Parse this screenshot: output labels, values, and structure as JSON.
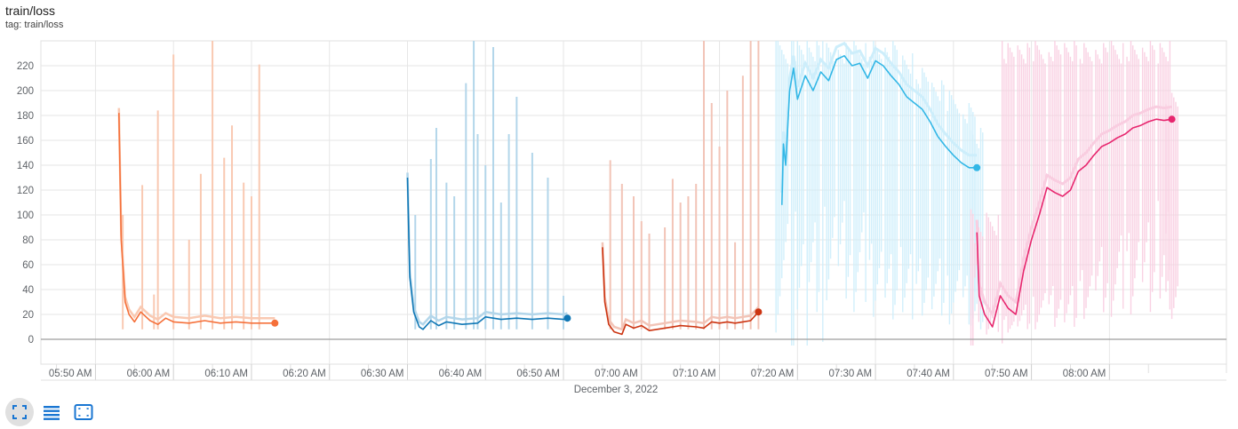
{
  "header": {
    "title": "train/loss",
    "tag": "tag: train/loss"
  },
  "toolbar": {
    "items": [
      {
        "name": "fit-domain-button",
        "icon": "fit-screen-icon"
      },
      {
        "name": "toggle-log-button",
        "icon": "list-icon"
      },
      {
        "name": "zoom-box-button",
        "icon": "crop-free-icon"
      }
    ]
  },
  "chart_data": {
    "type": "line",
    "title": "train/loss",
    "xlabel": "December 3, 2022",
    "ylabel": "",
    "x_axis": "time",
    "xlim": [
      "05:43",
      "08:15"
    ],
    "ylim": [
      -20,
      240
    ],
    "y_ticks": [
      0,
      20,
      40,
      60,
      80,
      100,
      120,
      140,
      160,
      180,
      200,
      220
    ],
    "x_ticks": [
      "05:50 AM",
      "06:00 AM",
      "06:10 AM",
      "06:20 AM",
      "06:30 AM",
      "06:40 AM",
      "06:50 AM",
      "07:00 AM",
      "07:10 AM",
      "07:20 AM",
      "07:30 AM",
      "07:40 AM",
      "07:50 AM",
      "08:00 AM"
    ],
    "grid": true,
    "series": [
      {
        "color": "#f5703a",
        "raw_color": "#f9c9b2",
        "smoothed": [
          [
            "05:53",
            182
          ],
          [
            "05:53.3",
            80
          ],
          [
            "05:53.8",
            30
          ],
          [
            "05:54.3",
            20
          ],
          [
            "05:55",
            14
          ],
          [
            "05:55.8",
            22
          ],
          [
            "05:57",
            15
          ],
          [
            "05:58",
            12
          ],
          [
            "05:59",
            17
          ],
          [
            "06:00",
            14
          ],
          [
            "06:02",
            13
          ],
          [
            "06:04",
            15
          ],
          [
            "06:06",
            13
          ],
          [
            "06:08",
            14
          ],
          [
            "06:10",
            13
          ],
          [
            "06:12",
            13
          ],
          [
            "06:13",
            13
          ]
        ],
        "raw_spikes": [
          [
            "05:53.5",
            100
          ],
          [
            "05:56",
            124
          ],
          [
            "05:57.5",
            36
          ],
          [
            "05:58",
            184
          ],
          [
            "06:00",
            229
          ],
          [
            "06:02",
            80
          ],
          [
            "06:03.5",
            133
          ],
          [
            "06:05",
            240
          ],
          [
            "06:06.5",
            146
          ],
          [
            "06:07.5",
            172
          ],
          [
            "06:09",
            126
          ],
          [
            "06:10",
            115
          ],
          [
            "06:11",
            221
          ]
        ]
      },
      {
        "color": "#0f77b5",
        "raw_color": "#b3d6ea",
        "smoothed": [
          [
            "06:30",
            130
          ],
          [
            "06:30.3",
            50
          ],
          [
            "06:30.8",
            22
          ],
          [
            "06:31.5",
            10
          ],
          [
            "06:32",
            8
          ],
          [
            "06:33",
            15
          ],
          [
            "06:34",
            11
          ],
          [
            "06:35",
            14
          ],
          [
            "06:37",
            12
          ],
          [
            "06:39",
            13
          ],
          [
            "06:40",
            18
          ],
          [
            "06:42",
            16
          ],
          [
            "06:44",
            17
          ],
          [
            "06:46",
            16
          ],
          [
            "06:48",
            17
          ],
          [
            "06:50",
            16
          ],
          [
            "06:50.5",
            17
          ]
        ],
        "raw_spikes": [
          [
            "06:31",
            100
          ],
          [
            "06:33",
            145
          ],
          [
            "06:33.7",
            170
          ],
          [
            "06:35",
            126
          ],
          [
            "06:36",
            115
          ],
          [
            "06:37.5",
            206
          ],
          [
            "06:38.5",
            240
          ],
          [
            "06:39",
            165
          ],
          [
            "06:40",
            140
          ],
          [
            "06:41",
            235
          ],
          [
            "06:42",
            110
          ],
          [
            "06:43",
            165
          ],
          [
            "06:44",
            195
          ],
          [
            "06:46",
            150
          ],
          [
            "06:48",
            130
          ],
          [
            "06:50",
            35
          ]
        ]
      },
      {
        "color": "#cc3411",
        "raw_color": "#f2c4b7",
        "smoothed": [
          [
            "06:55",
            74
          ],
          [
            "06:55.3",
            30
          ],
          [
            "06:55.8",
            12
          ],
          [
            "06:56.5",
            6
          ],
          [
            "06:57.5",
            4
          ],
          [
            "06:58",
            12
          ],
          [
            "06:59",
            9
          ],
          [
            "07:00",
            11
          ],
          [
            "07:01",
            7
          ],
          [
            "07:03",
            9
          ],
          [
            "07:05",
            11
          ],
          [
            "07:07",
            10
          ],
          [
            "07:08",
            9
          ],
          [
            "07:09",
            14
          ],
          [
            "07:10",
            13
          ],
          [
            "07:11",
            14
          ],
          [
            "07:12",
            13
          ],
          [
            "07:13",
            14
          ],
          [
            "07:14",
            15
          ],
          [
            "07:15",
            22
          ]
        ],
        "raw_spikes": [
          [
            "06:56",
            144
          ],
          [
            "06:57.5",
            125
          ],
          [
            "06:59",
            115
          ],
          [
            "07:00",
            95
          ],
          [
            "07:01",
            85
          ],
          [
            "07:03",
            90
          ],
          [
            "07:04",
            129
          ],
          [
            "07:05",
            110
          ],
          [
            "07:06",
            115
          ],
          [
            "07:07",
            125
          ],
          [
            "07:08",
            240
          ],
          [
            "07:09",
            190
          ],
          [
            "07:10",
            155
          ],
          [
            "07:11",
            200
          ],
          [
            "07:12",
            78
          ],
          [
            "07:13",
            212
          ],
          [
            "07:14",
            240
          ],
          [
            "07:15",
            240
          ]
        ]
      },
      {
        "color": "#33b7e6",
        "raw_color": "#cdeefb",
        "smoothed": [
          [
            "07:18",
            108
          ],
          [
            "07:18.2",
            157
          ],
          [
            "07:18.5",
            140
          ],
          [
            "07:19",
            200
          ],
          [
            "07:19.5",
            218
          ],
          [
            "07:20",
            193
          ],
          [
            "07:21",
            212
          ],
          [
            "07:22",
            200
          ],
          [
            "07:23",
            215
          ],
          [
            "07:24",
            208
          ],
          [
            "07:25",
            225
          ],
          [
            "07:26",
            228
          ],
          [
            "07:27",
            220
          ],
          [
            "07:28",
            222
          ],
          [
            "07:29",
            210
          ],
          [
            "07:30",
            224
          ],
          [
            "07:31",
            220
          ],
          [
            "07:32",
            212
          ],
          [
            "07:33",
            205
          ],
          [
            "07:34",
            195
          ],
          [
            "07:35",
            190
          ],
          [
            "07:36",
            185
          ],
          [
            "07:37",
            175
          ],
          [
            "07:38",
            163
          ],
          [
            "07:39",
            155
          ],
          [
            "07:40",
            148
          ],
          [
            "07:41",
            142
          ],
          [
            "07:42",
            138
          ],
          [
            "07:43",
            138
          ]
        ],
        "raw_lo": [
          [
            "07:18",
            100
          ],
          [
            "07:20",
            120
          ],
          [
            "07:22",
            110
          ],
          [
            "07:24",
            115
          ],
          [
            "07:26",
            120
          ],
          [
            "07:28",
            110
          ],
          [
            "07:30",
            90
          ],
          [
            "07:32",
            80
          ],
          [
            "07:34",
            80
          ],
          [
            "07:36",
            70
          ],
          [
            "07:38",
            70
          ],
          [
            "07:40",
            60
          ],
          [
            "07:42",
            60
          ],
          [
            "07:43",
            40
          ]
        ],
        "raw_hi": [
          [
            "07:18",
            240
          ],
          [
            "07:20",
            240
          ],
          [
            "07:22",
            240
          ],
          [
            "07:24",
            240
          ],
          [
            "07:26",
            240
          ],
          [
            "07:28",
            240
          ],
          [
            "07:30",
            240
          ],
          [
            "07:32",
            240
          ],
          [
            "07:34",
            230
          ],
          [
            "07:36",
            220
          ],
          [
            "07:38",
            210
          ],
          [
            "07:40",
            200
          ],
          [
            "07:42",
            190
          ],
          [
            "07:43",
            170
          ]
        ]
      },
      {
        "color": "#e7266e",
        "raw_color": "#f9cde0",
        "smoothed": [
          [
            "07:43",
            86
          ],
          [
            "07:43.3",
            35
          ],
          [
            "07:44",
            20
          ],
          [
            "07:45",
            10
          ],
          [
            "07:46",
            35
          ],
          [
            "07:47",
            25
          ],
          [
            "07:48",
            20
          ],
          [
            "07:49",
            55
          ],
          [
            "07:50",
            80
          ],
          [
            "07:51",
            100
          ],
          [
            "07:52",
            122
          ],
          [
            "07:53",
            118
          ],
          [
            "07:54",
            115
          ],
          [
            "07:55",
            120
          ],
          [
            "07:56",
            135
          ],
          [
            "07:57",
            140
          ],
          [
            "07:58",
            148
          ],
          [
            "07:59",
            155
          ],
          [
            "08:00",
            158
          ],
          [
            "08:01",
            162
          ],
          [
            "08:02",
            165
          ],
          [
            "08:03",
            170
          ],
          [
            "08:04",
            172
          ],
          [
            "08:05",
            175
          ],
          [
            "08:06",
            177
          ],
          [
            "08:07",
            176
          ],
          [
            "08:08",
            177
          ]
        ],
        "raw_lo": [
          [
            "07:43",
            70
          ],
          [
            "07:45",
            30
          ],
          [
            "07:47",
            20
          ],
          [
            "07:49",
            30
          ],
          [
            "07:51",
            40
          ],
          [
            "07:53",
            50
          ],
          [
            "07:55",
            50
          ],
          [
            "07:57",
            60
          ],
          [
            "07:59",
            80
          ],
          [
            "08:01",
            90
          ],
          [
            "08:03",
            100
          ],
          [
            "08:05",
            110
          ],
          [
            "08:07",
            120
          ],
          [
            "08:08",
            60
          ]
        ],
        "raw_hi": [
          [
            "07:43",
            90
          ],
          [
            "07:45",
            100
          ],
          [
            "07:47",
            240
          ],
          [
            "07:49",
            240
          ],
          [
            "07:51",
            240
          ],
          [
            "07:53",
            240
          ],
          [
            "07:55",
            240
          ],
          [
            "07:57",
            240
          ],
          [
            "07:59",
            240
          ],
          [
            "08:01",
            240
          ],
          [
            "08:03",
            240
          ],
          [
            "08:05",
            240
          ],
          [
            "08:07",
            240
          ],
          [
            "08:08",
            200
          ]
        ]
      }
    ]
  }
}
